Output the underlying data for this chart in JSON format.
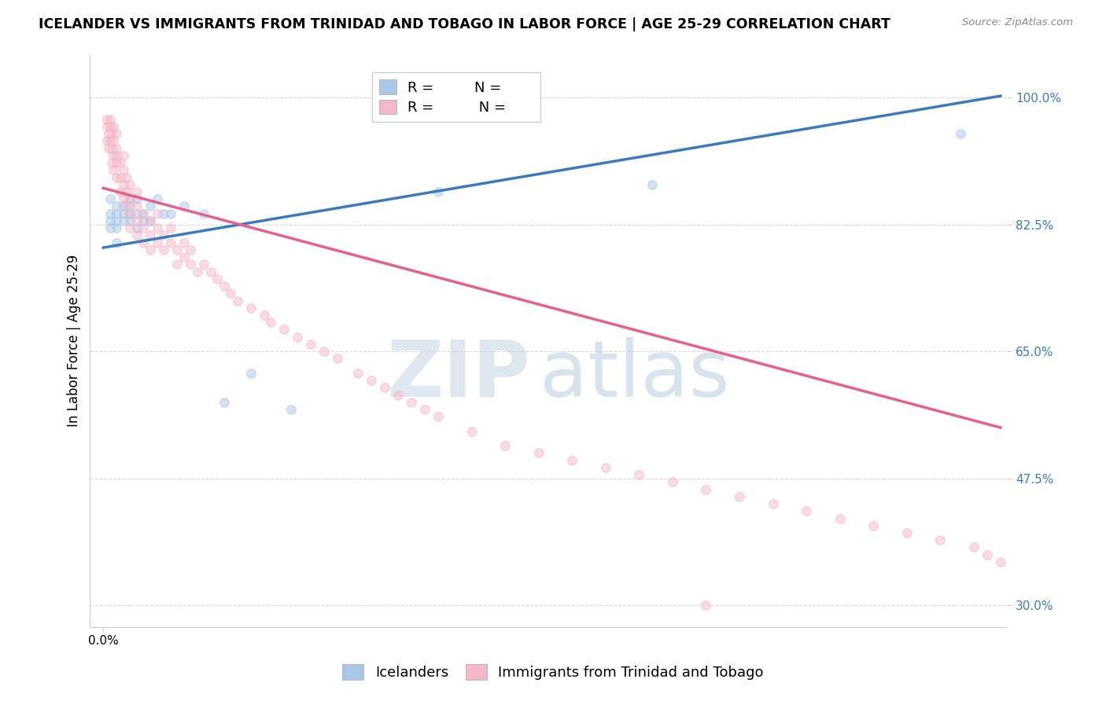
{
  "title": "ICELANDER VS IMMIGRANTS FROM TRINIDAD AND TOBAGO IN LABOR FORCE | AGE 25-29 CORRELATION CHART",
  "source": "Source: ZipAtlas.com",
  "ylabel": "In Labor Force | Age 25-29",
  "xlim": [
    -0.002,
    0.135
  ],
  "ylim": [
    0.27,
    1.06
  ],
  "yticks": [
    0.3,
    0.475,
    0.65,
    0.825,
    1.0
  ],
  "ytick_labels": [
    "30.0%",
    "47.5%",
    "65.0%",
    "82.5%",
    "100.0%"
  ],
  "xtick_val": 0.0,
  "xtick_label": "0.0%",
  "blue_color": "#a8c8e8",
  "pink_color": "#f4b8c8",
  "blue_line_color": "#3a7bbf",
  "pink_line_color": "#e8608a",
  "watermark_zip": "ZIP",
  "watermark_atlas": "atlas",
  "blue_scatter_x": [
    0.001,
    0.001,
    0.001,
    0.001,
    0.002,
    0.002,
    0.002,
    0.002,
    0.002,
    0.003,
    0.003,
    0.003,
    0.004,
    0.004,
    0.004,
    0.004,
    0.005,
    0.005,
    0.005,
    0.006,
    0.006,
    0.007,
    0.007,
    0.008,
    0.009,
    0.01,
    0.012,
    0.015,
    0.018,
    0.022,
    0.028,
    0.05,
    0.082,
    0.128
  ],
  "blue_scatter_y": [
    0.84,
    0.82,
    0.86,
    0.83,
    0.85,
    0.83,
    0.84,
    0.82,
    0.8,
    0.85,
    0.83,
    0.84,
    0.86,
    0.84,
    0.83,
    0.85,
    0.84,
    0.82,
    0.86,
    0.84,
    0.83,
    0.85,
    0.83,
    0.86,
    0.84,
    0.84,
    0.85,
    0.84,
    0.58,
    0.62,
    0.57,
    0.87,
    0.88,
    0.95
  ],
  "pink_scatter_x": [
    0.0005,
    0.0005,
    0.0005,
    0.0008,
    0.0008,
    0.001,
    0.001,
    0.001,
    0.0012,
    0.0012,
    0.0012,
    0.0015,
    0.0015,
    0.0015,
    0.0015,
    0.002,
    0.002,
    0.002,
    0.002,
    0.002,
    0.0025,
    0.0025,
    0.0025,
    0.003,
    0.003,
    0.003,
    0.003,
    0.0035,
    0.0035,
    0.0035,
    0.004,
    0.004,
    0.004,
    0.004,
    0.005,
    0.005,
    0.005,
    0.005,
    0.006,
    0.006,
    0.006,
    0.007,
    0.007,
    0.007,
    0.008,
    0.008,
    0.008,
    0.009,
    0.009,
    0.01,
    0.01,
    0.011,
    0.011,
    0.012,
    0.012,
    0.013,
    0.013,
    0.014,
    0.015,
    0.016,
    0.017,
    0.018,
    0.019,
    0.02,
    0.022,
    0.024,
    0.025,
    0.027,
    0.029,
    0.031,
    0.033,
    0.035,
    0.038,
    0.04,
    0.042,
    0.044,
    0.046,
    0.048,
    0.05,
    0.055,
    0.06,
    0.065,
    0.07,
    0.075,
    0.08,
    0.085,
    0.09,
    0.095,
    0.1,
    0.105,
    0.11,
    0.115,
    0.12,
    0.125,
    0.13,
    0.132,
    0.134,
    0.09
  ],
  "pink_scatter_y": [
    0.96,
    0.94,
    0.97,
    0.95,
    0.93,
    0.96,
    0.94,
    0.97,
    0.95,
    0.93,
    0.91,
    0.94,
    0.96,
    0.92,
    0.9,
    0.95,
    0.93,
    0.91,
    0.89,
    0.92,
    0.91,
    0.89,
    0.87,
    0.9,
    0.88,
    0.86,
    0.92,
    0.89,
    0.87,
    0.85,
    0.88,
    0.86,
    0.84,
    0.82,
    0.85,
    0.83,
    0.81,
    0.87,
    0.84,
    0.82,
    0.8,
    0.83,
    0.81,
    0.79,
    0.82,
    0.8,
    0.84,
    0.81,
    0.79,
    0.8,
    0.82,
    0.79,
    0.77,
    0.8,
    0.78,
    0.77,
    0.79,
    0.76,
    0.77,
    0.76,
    0.75,
    0.74,
    0.73,
    0.72,
    0.71,
    0.7,
    0.69,
    0.68,
    0.67,
    0.66,
    0.65,
    0.64,
    0.62,
    0.61,
    0.6,
    0.59,
    0.58,
    0.57,
    0.56,
    0.54,
    0.52,
    0.51,
    0.5,
    0.49,
    0.48,
    0.47,
    0.46,
    0.45,
    0.44,
    0.43,
    0.42,
    0.41,
    0.4,
    0.39,
    0.38,
    0.37,
    0.36,
    0.3
  ],
  "blue_line_x": [
    0.0,
    0.134
  ],
  "blue_line_y": [
    0.793,
    1.002
  ],
  "pink_line_x": [
    0.0,
    0.134
  ],
  "pink_line_y": [
    0.875,
    0.545
  ],
  "grid_color": "#d0d0d0",
  "background_color": "#ffffff",
  "title_fontsize": 12.5,
  "axis_label_fontsize": 12,
  "tick_fontsize": 11,
  "legend_fontsize": 13,
  "scatter_size": 70,
  "scatter_alpha": 0.5,
  "scatter_linewidth": 1.0
}
